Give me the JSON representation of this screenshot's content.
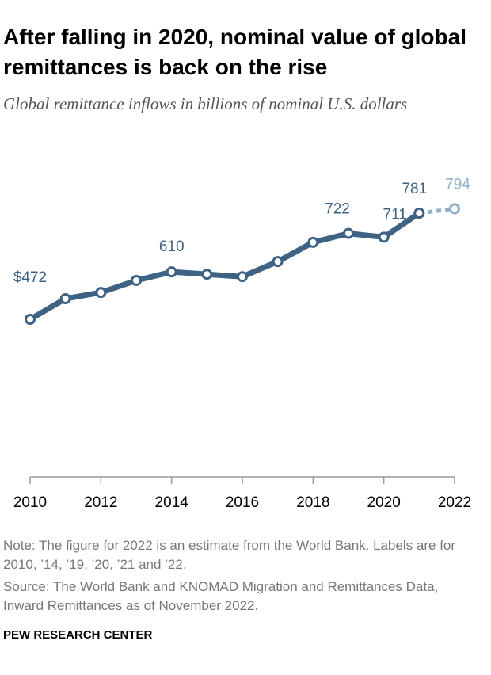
{
  "chart_data": {
    "type": "line",
    "title": "After falling in 2020, nominal value of global remittances is back on the rise",
    "subtitle": "Global remittance inflows in billions of nominal U.S. dollars",
    "x": [
      2010,
      2011,
      2012,
      2013,
      2014,
      2015,
      2016,
      2017,
      2018,
      2019,
      2020,
      2021,
      2022
    ],
    "series": [
      {
        "color": "#3e6283",
        "dashed": false,
        "values": [
          472,
          532,
          550,
          585,
          610,
          603,
          596,
          640,
          696,
          722,
          711,
          781,
          null
        ],
        "value_labels": [
          "$472",
          null,
          null,
          null,
          "610",
          null,
          null,
          null,
          null,
          "722",
          "711",
          "781",
          null
        ]
      },
      {
        "color": "#8db0cb",
        "dashed": true,
        "values": [
          null,
          null,
          null,
          null,
          null,
          null,
          null,
          null,
          null,
          null,
          null,
          781,
          794
        ],
        "value_labels": [
          null,
          null,
          null,
          null,
          null,
          null,
          null,
          null,
          null,
          null,
          null,
          null,
          "794"
        ]
      }
    ],
    "xlim": [
      2010,
      2022
    ],
    "xticks": [
      2010,
      2012,
      2014,
      2016,
      2018,
      2020,
      2022
    ],
    "ylim": [
      0,
      900
    ],
    "note": "Note: The figure for 2022 is an estimate from the World Bank. Labels are for 2010, ’14, ’19, ’20, ’21 and ’22.",
    "source": "Source: The World Bank and KNOMAD Migration and Remittances Data, Inward Remittances as of November 2022.",
    "footer": "PEW RESEARCH CENTER"
  }
}
